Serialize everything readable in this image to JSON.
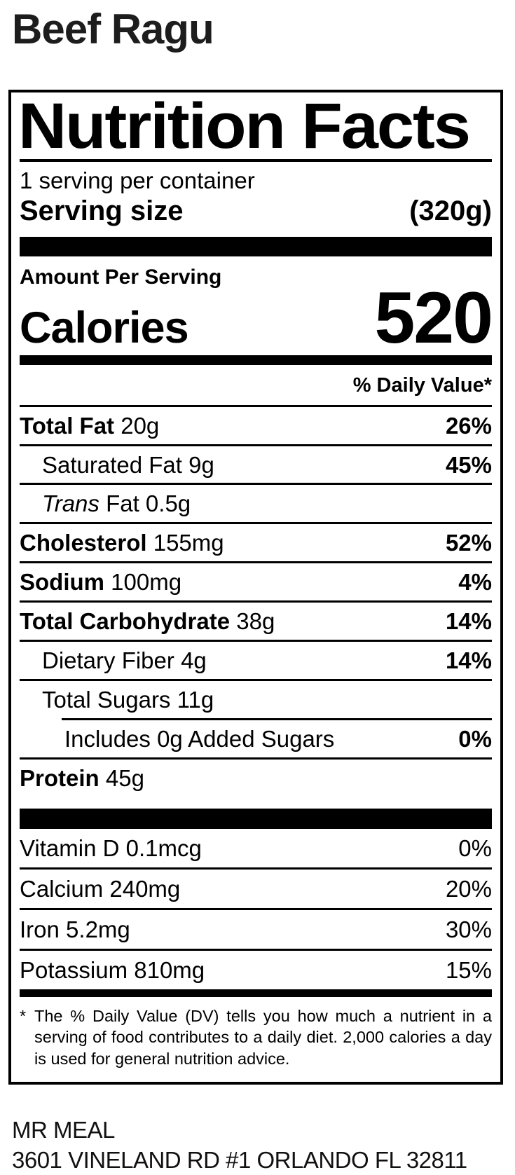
{
  "page": {
    "product_title": "Beef Ragu"
  },
  "label": {
    "title": "Nutrition Facts",
    "servings_per_container": "1 serving per container",
    "serving_size_label": "Serving size",
    "serving_size_value": "(320g)",
    "amount_per_serving": "Amount Per Serving",
    "calories_label": "Calories",
    "calories_value": "520",
    "daily_value_header": "% Daily Value*",
    "nutrients": [
      {
        "name": "Total Fat",
        "amount": "20g",
        "dv": "26%"
      },
      {
        "name": "Saturated Fat",
        "amount": "9g",
        "dv": "45%"
      },
      {
        "name": "Trans",
        "amount": "Fat 0.5g",
        "dv": ""
      },
      {
        "name": "Cholesterol",
        "amount": "155mg",
        "dv": "52%"
      },
      {
        "name": "Sodium",
        "amount": "100mg",
        "dv": "4%"
      },
      {
        "name": "Total Carbohydrate",
        "amount": "38g",
        "dv": "14%"
      },
      {
        "name": "Dietary Fiber",
        "amount": "4g",
        "dv": "14%"
      },
      {
        "name": "Total Sugars",
        "amount": "11g",
        "dv": ""
      },
      {
        "name": "Includes 0g Added Sugars",
        "amount": "",
        "dv": "0%"
      },
      {
        "name": "Protein",
        "amount": "45g",
        "dv": ""
      }
    ],
    "vitamins": [
      {
        "name": "Vitamin D",
        "amount": "0.1mcg",
        "dv": "0%"
      },
      {
        "name": "Calcium",
        "amount": "240mg",
        "dv": "20%"
      },
      {
        "name": "Iron",
        "amount": "5.2mg",
        "dv": "30%"
      },
      {
        "name": "Potassium",
        "amount": "810mg",
        "dv": "15%"
      }
    ],
    "footnote_marker": "*",
    "footnote": "The % Daily Value (DV) tells you how much a nutrient in a serving of food contributes to a daily diet. 2,000 calories a day is used for general nutrition advice."
  },
  "footer": {
    "manufacturer": "MR MEAL",
    "address": "3601 VINELAND RD #1 ORLANDO FL 32811"
  },
  "colors": {
    "text": "#000000",
    "background": "#ffffff",
    "product_title": "#1d1d1d"
  }
}
